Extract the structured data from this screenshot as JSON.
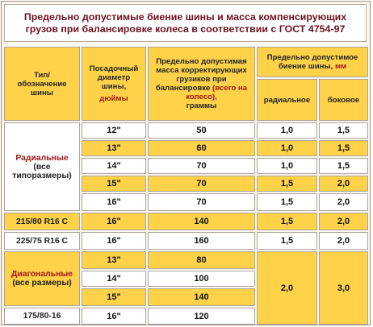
{
  "title": "Предельно допустимые биение шины и масса компенсирующих грузов при балансировке колеса в соответствии с ГОСТ 4754-97",
  "headers": {
    "type_line1": "Тип/",
    "type_line2": "обозначение",
    "type_line3": "шины",
    "diam_line1": "Посадочный",
    "diam_line2": "диаметр",
    "diam_line3": "шины,",
    "diam_unit": "дюймы",
    "mass_line1": "Предельно допустимая",
    "mass_line2": "масса корректирующих",
    "mass_line3": "грузиков при",
    "mass_line4": "балансировке",
    "mass_red": "(всего на колесо),",
    "mass_unit": "граммы",
    "runout_main": "Предельно допустимое биение шины,",
    "runout_unit": "мм",
    "radial": "радиальное",
    "lateral": "боковое"
  },
  "groups": {
    "radial_line1": "Радиальные",
    "radial_line2": "(все",
    "radial_line3": "типоразмеры)",
    "c1": "215/80 R16 C",
    "c2": "225/75 R16 C",
    "diag_line1": "Диагональные",
    "diag_line2": "(все размеры)",
    "last": "175/80-16"
  },
  "rows": [
    {
      "diam": "12\"",
      "mass": "50",
      "radial": "1,0",
      "lateral": "1,5"
    },
    {
      "diam": "13\"",
      "mass": "60",
      "radial": "1,0",
      "lateral": "1,5"
    },
    {
      "diam": "14\"",
      "mass": "70",
      "radial": "1,0",
      "lateral": "1,5"
    },
    {
      "diam": "15\"",
      "mass": "70",
      "radial": "1,5",
      "lateral": "2,0"
    },
    {
      "diam": "16\"",
      "mass": "70",
      "radial": "1,5",
      "lateral": "2,0"
    },
    {
      "diam": "16\"",
      "mass": "140",
      "radial": "1,5",
      "lateral": "2,0"
    },
    {
      "diam": "16\"",
      "mass": "160",
      "radial": "1,5",
      "lateral": "2,0"
    },
    {
      "diam": "13\"",
      "mass": "80"
    },
    {
      "diam": "14\"",
      "mass": "100"
    },
    {
      "diam": "15\"",
      "mass": "140"
    },
    {
      "diam": "16\"",
      "mass": "120"
    }
  ],
  "diag_radial": "2,0",
  "diag_lateral": "3,0"
}
